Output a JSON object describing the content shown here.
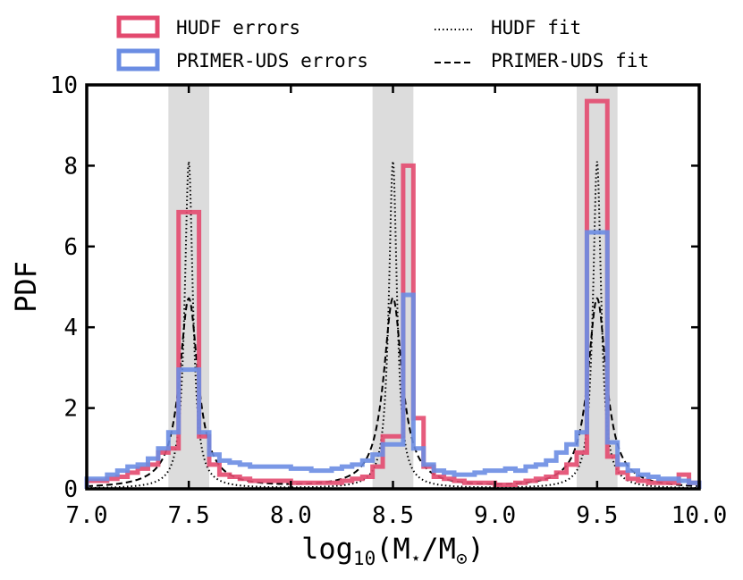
{
  "chart_data": {
    "type": "step-histogram",
    "xlabel": "log10(M⋆/M⊙)",
    "ylabel": "PDF",
    "xlim": [
      7.0,
      10.0
    ],
    "ylim": [
      0,
      10
    ],
    "x_ticks": [
      7.0,
      7.5,
      8.0,
      8.5,
      9.0,
      9.5,
      10.0
    ],
    "x_tick_labels": [
      "7.0",
      "7.5",
      "8.0",
      "8.5",
      "9.0",
      "9.5",
      "10.0"
    ],
    "y_ticks": [
      0,
      2,
      4,
      6,
      8,
      10
    ],
    "y_tick_labels": [
      "0",
      "2",
      "4",
      "6",
      "8",
      "10"
    ],
    "shaded_bands": [
      [
        7.4,
        7.6
      ],
      [
        8.4,
        8.6
      ],
      [
        9.4,
        9.6
      ]
    ],
    "bin_edges": [
      7.0,
      7.05,
      7.1,
      7.15,
      7.2,
      7.25,
      7.3,
      7.35,
      7.4,
      7.45,
      7.55,
      7.6,
      7.65,
      7.7,
      7.75,
      7.8,
      7.85,
      7.9,
      7.95,
      8.0,
      8.05,
      8.1,
      8.15,
      8.2,
      8.25,
      8.3,
      8.35,
      8.4,
      8.45,
      8.55,
      8.6,
      8.65,
      8.7,
      8.75,
      8.8,
      8.85,
      8.9,
      8.95,
      9.0,
      9.05,
      9.1,
      9.15,
      9.2,
      9.25,
      9.3,
      9.35,
      9.4,
      9.45,
      9.55,
      9.6,
      9.65,
      9.7,
      9.75,
      9.8,
      9.85,
      9.9,
      9.95,
      10.0
    ],
    "series": [
      {
        "name": "HUDF errors",
        "kind": "hist",
        "color": "#e34a6f",
        "values": [
          0.2,
          0.2,
          0.25,
          0.3,
          0.4,
          0.5,
          0.6,
          0.9,
          1.0,
          6.85,
          1.3,
          0.6,
          0.35,
          0.3,
          0.25,
          0.2,
          0.2,
          0.2,
          0.2,
          0.15,
          0.15,
          0.15,
          0.15,
          0.15,
          0.2,
          0.25,
          0.3,
          0.55,
          1.3,
          8.0,
          1.75,
          0.55,
          0.3,
          0.25,
          0.2,
          0.15,
          0.15,
          0.15,
          0.1,
          0.1,
          0.15,
          0.2,
          0.25,
          0.3,
          0.4,
          0.6,
          0.9,
          9.6,
          0.8,
          0.4,
          0.25,
          0.2,
          0.15,
          0.15,
          0.15,
          0.35,
          0.15
        ]
      },
      {
        "name": "PRIMER-UDS errors",
        "kind": "hist",
        "color": "#6b8de3",
        "values": [
          0.25,
          0.25,
          0.35,
          0.45,
          0.55,
          0.6,
          0.75,
          1.0,
          1.4,
          2.95,
          1.4,
          0.85,
          0.7,
          0.65,
          0.6,
          0.55,
          0.55,
          0.55,
          0.55,
          0.5,
          0.5,
          0.45,
          0.45,
          0.5,
          0.55,
          0.6,
          0.7,
          0.85,
          1.1,
          4.8,
          1.0,
          0.6,
          0.45,
          0.4,
          0.35,
          0.35,
          0.4,
          0.45,
          0.45,
          0.5,
          0.45,
          0.55,
          0.6,
          0.7,
          0.9,
          1.1,
          1.4,
          6.35,
          1.15,
          0.6,
          0.45,
          0.35,
          0.3,
          0.25,
          0.25,
          0.2,
          0.15
        ]
      },
      {
        "name": "HUDF fit",
        "kind": "fit",
        "style": "dotted",
        "peak": 8.1,
        "gamma": 0.024
      },
      {
        "name": "PRIMER-UDS fit",
        "kind": "fit",
        "style": "dashed",
        "peak": 4.7,
        "gamma": 0.055
      }
    ],
    "legend": {
      "placement": "top, outside plot, two columns",
      "entries": [
        "HUDF errors",
        "PRIMER-UDS errors",
        "HUDF fit",
        "PRIMER-UDS fit"
      ]
    }
  }
}
